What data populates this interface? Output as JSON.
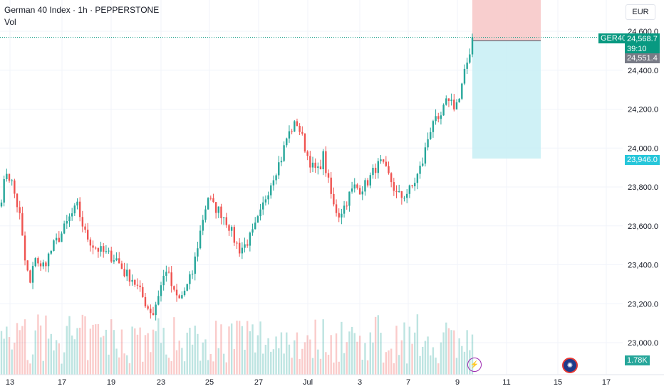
{
  "header": {
    "title": "German 40 Index · 1h · PEPPERSTONE",
    "indicator": "Vol"
  },
  "currency": "EUR",
  "tags": {
    "symbol": "GER40",
    "last_price": "24,568.7",
    "countdown": "39:10",
    "stop_price": "24,551.4",
    "target_price": "23,946.0",
    "volume": "1.78K"
  },
  "colors": {
    "up": "#26a69a",
    "down": "#ef5350",
    "stop_zone": "#f7c6c6",
    "target_zone": "#c7eef5",
    "target_tag": "#26c6da",
    "grey_tag": "#787b86"
  },
  "icons": [
    "lightning-icon",
    "globe-icon"
  ],
  "chart_data": {
    "type": "candlestick",
    "ylim": [
      22950,
      24680
    ],
    "y_ticks": [
      "24,600.0",
      "24,400.0",
      "24,200.0",
      "24,000.0",
      "23,800.0",
      "23,600.0",
      "23,400.0",
      "23,200.0",
      "23,000.0"
    ],
    "y_tick_values": [
      24600,
      24400,
      24200,
      24000,
      23800,
      23600,
      23400,
      23200,
      23000
    ],
    "x_ticks": [
      "13",
      "17",
      "19",
      "23",
      "25",
      "27",
      "Jul",
      "3",
      "7",
      "9",
      "11",
      "15",
      "17"
    ],
    "price_path": [
      [
        0,
        23750
      ],
      [
        2,
        23880
      ],
      [
        4,
        23820
      ],
      [
        7,
        23650
      ],
      [
        9,
        23420
      ],
      [
        11,
        23300
      ],
      [
        13,
        23450
      ],
      [
        15,
        23380
      ],
      [
        17,
        23420
      ],
      [
        20,
        23500
      ],
      [
        23,
        23560
      ],
      [
        26,
        23640
      ],
      [
        29,
        23700
      ],
      [
        32,
        23560
      ],
      [
        35,
        23500
      ],
      [
        38,
        23470
      ],
      [
        41,
        23450
      ],
      [
        44,
        23430
      ],
      [
        47,
        23360
      ],
      [
        50,
        23330
      ],
      [
        53,
        23260
      ],
      [
        56,
        23180
      ],
      [
        58,
        23150
      ],
      [
        60,
        23250
      ],
      [
        63,
        23380
      ],
      [
        66,
        23250
      ],
      [
        68,
        23220
      ],
      [
        71,
        23290
      ],
      [
        73,
        23360
      ],
      [
        75,
        23500
      ],
      [
        77,
        23640
      ],
      [
        79,
        23750
      ],
      [
        81,
        23700
      ],
      [
        83,
        23680
      ],
      [
        85,
        23650
      ],
      [
        87,
        23600
      ],
      [
        89,
        23530
      ],
      [
        91,
        23480
      ],
      [
        93,
        23500
      ],
      [
        96,
        23560
      ],
      [
        99,
        23660
      ],
      [
        101,
        23750
      ],
      [
        104,
        23860
      ],
      [
        107,
        23950
      ],
      [
        109,
        24050
      ],
      [
        111,
        24100
      ],
      [
        113,
        24130
      ],
      [
        115,
        24050
      ],
      [
        117,
        23960
      ],
      [
        119,
        23900
      ],
      [
        121,
        23880
      ],
      [
        123,
        23960
      ],
      [
        125,
        23820
      ],
      [
        127,
        23700
      ],
      [
        129,
        23660
      ],
      [
        131,
        23700
      ],
      [
        133,
        23760
      ],
      [
        135,
        23800
      ],
      [
        137,
        23790
      ],
      [
        139,
        23810
      ],
      [
        141,
        23850
      ],
      [
        143,
        23900
      ],
      [
        145,
        23920
      ],
      [
        147,
        23880
      ],
      [
        149,
        23830
      ],
      [
        151,
        23760
      ],
      [
        153,
        23750
      ],
      [
        155,
        23770
      ],
      [
        157,
        23800
      ],
      [
        159,
        23860
      ],
      [
        161,
        23930
      ],
      [
        163,
        24050
      ],
      [
        165,
        24150
      ],
      [
        167,
        24120
      ],
      [
        169,
        24200
      ],
      [
        171,
        24260
      ],
      [
        173,
        24220
      ],
      [
        175,
        24250
      ],
      [
        177,
        24380
      ],
      [
        179,
        24500
      ],
      [
        180,
        24569
      ]
    ],
    "volume_range": [
      0,
      4000
    ]
  }
}
